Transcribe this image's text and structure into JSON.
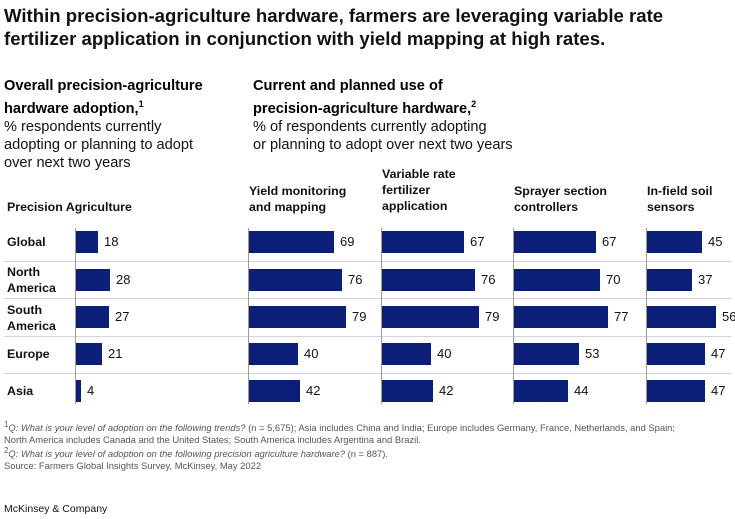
{
  "title": {
    "line1": "Within precision-agriculture hardware, farmers are leveraging variable rate",
    "line2": "fertilizer application in conjunction with yield mapping at high rates."
  },
  "left_header": {
    "bold1": "Overall precision-agriculture",
    "bold2": "hardware adoption,",
    "sup": "1",
    "desc1": "% respondents currently",
    "desc2": "adopting or planning to adopt",
    "desc3": "over next two years"
  },
  "mid_header": {
    "bold1": "Current and planned use of",
    "bold2": "precision-agriculture hardware,",
    "sup": "2",
    "desc1": "% of respondents currently adopting",
    "desc2": "or planning to adopt over next two years"
  },
  "column_headers": {
    "pa": "Precision Agriculture",
    "yield": [
      "Yield monitoring",
      "and mapping"
    ],
    "vrf": [
      "Variable rate",
      "fertilizer",
      "application"
    ],
    "sprayer": [
      "Sprayer section",
      "controllers"
    ],
    "soil": [
      "In-field soil",
      "sensors"
    ]
  },
  "chart_data": {
    "type": "bar",
    "title": "Within precision-agriculture hardware, farmers are leveraging variable rate fertilizer application in conjunction with yield mapping at high rates.",
    "categories": [
      {
        "line1": "Global",
        "line2": ""
      },
      {
        "line1": "North",
        "line2": "America"
      },
      {
        "line1": "South",
        "line2": "America"
      },
      {
        "line1": "Europe",
        "line2": ""
      },
      {
        "line1": "Asia",
        "line2": ""
      }
    ],
    "series": [
      {
        "name": "Precision Agriculture",
        "values": [
          18,
          28,
          27,
          21,
          4
        ]
      },
      {
        "name": "Yield monitoring and mapping",
        "values": [
          69,
          76,
          79,
          40,
          42
        ]
      },
      {
        "name": "Variable rate fertilizer application",
        "values": [
          67,
          76,
          79,
          40,
          42
        ]
      },
      {
        "name": "Sprayer section controllers",
        "values": [
          67,
          70,
          77,
          53,
          44
        ]
      },
      {
        "name": "In-field soil sensors",
        "values": [
          45,
          37,
          56,
          47,
          47
        ]
      }
    ],
    "unit": "% of respondents",
    "colors": {
      "bar": "#0b1f78",
      "divider": "#9b9b9b",
      "row_line": "#d4d4d4"
    }
  },
  "footnotes": {
    "f1_sup": "1",
    "f1_q": "Q: What is your level of adoption on the following trends?",
    "f1_rest": " (n = 5,675); Asia includes China and India; Europe includes Germany, France, Netherlands, and Spain;",
    "f1_cont": "North America includes Canada and the United States; South America includes Argentina and Brazil.",
    "f2_sup": "2",
    "f2_q": "Q: What is your level of adoption on the following precision agriculture hardware?",
    "f2_rest": " (n = 887).",
    "source": "Source: Farmers Global Insights Survey, McKinsey, May 2022"
  },
  "brand": "McKinsey & Company"
}
